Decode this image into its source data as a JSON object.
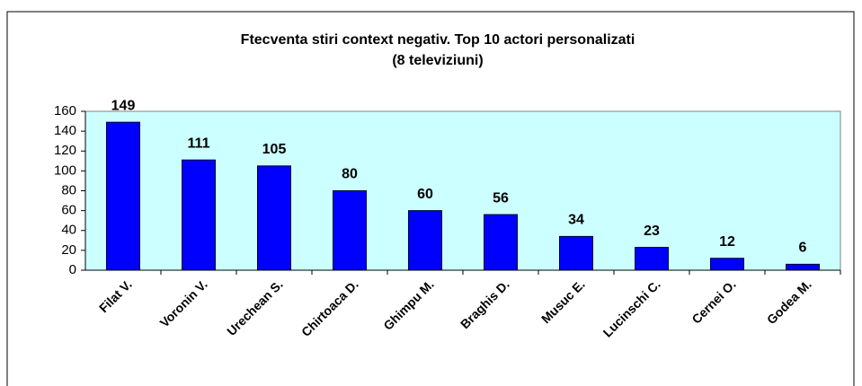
{
  "chart_data": {
    "type": "bar",
    "title": [
      "Ftecventa stiri context negativ. Top 10 actori personalizati",
      "(8 televiziuni)"
    ],
    "categories": [
      "Filat V.",
      "Voronin V.",
      "Urechean S.",
      "Chirtoaca D.",
      "Ghimpu M.",
      "Braghis D.",
      "Musuc E.",
      "Lucinschi C.",
      "Cernei O.",
      "Godea M."
    ],
    "values": [
      149,
      111,
      105,
      80,
      60,
      56,
      34,
      23,
      12,
      6
    ],
    "color": "#0000ff",
    "ylim": [
      0,
      160
    ],
    "yticks": [
      0,
      20,
      40,
      60,
      80,
      100,
      120,
      140,
      160
    ],
    "grid": false
  }
}
